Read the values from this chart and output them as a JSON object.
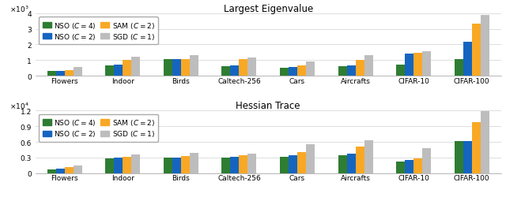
{
  "categories": [
    "Flowers",
    "Indoor",
    "Birds",
    "Caltech-256",
    "Cars",
    "Aircrafts",
    "CIFAR-10",
    "CIFAR-100"
  ],
  "eigenvalue": {
    "NSO_C4": [
      300,
      650,
      1050,
      600,
      500,
      600,
      700,
      1050
    ],
    "NSO_C2": [
      300,
      700,
      1050,
      650,
      550,
      650,
      1400,
      2150
    ],
    "SAM_C2": [
      350,
      1000,
      1050,
      1050,
      650,
      1000,
      1450,
      3350
    ],
    "SGD_C1": [
      550,
      1200,
      1300,
      1150,
      900,
      1300,
      1550,
      3900
    ]
  },
  "hessian": {
    "NSO_C4": [
      700,
      2900,
      2950,
      3000,
      3200,
      3400,
      2200,
      6100
    ],
    "NSO_C2": [
      900,
      3050,
      3050,
      3150,
      3400,
      3700,
      2600,
      6200
    ],
    "SAM_C2": [
      1200,
      3200,
      3350,
      3450,
      4000,
      5100,
      2900,
      9800
    ],
    "SGD_C1": [
      1500,
      3550,
      3850,
      3700,
      5600,
      6300,
      4800,
      11900
    ]
  },
  "colors": {
    "NSO_C4": "#2e7d32",
    "NSO_C2": "#1565c0",
    "SAM_C2": "#f9a825",
    "SGD_C1": "#bdbdbd"
  },
  "legend_labels": {
    "NSO_C4": "NSO ($C = 4$)",
    "NSO_C2": "NSO ($C = 2$)",
    "SAM_C2": "SAM ($C = 2$)",
    "SGD_C1": "SGD ($C = 1$)"
  },
  "title_eigen": "Largest Eigenvalue",
  "title_hessian": "Hessian Trace",
  "ylim_eigen": [
    0,
    4000
  ],
  "ylim_hessian": [
    0,
    12000
  ],
  "yticks_eigen": [
    0,
    1000,
    2000,
    3000,
    4000
  ],
  "ytick_labels_eigen": [
    "0",
    "1",
    "2",
    "3",
    "4"
  ],
  "exp_label_eigen": "$\\times 10^3$",
  "yticks_hessian": [
    0,
    3000,
    6000,
    9000,
    12000
  ],
  "ytick_labels_hessian": [
    "0",
    "0.3",
    "0.6",
    "0.9",
    "1.2"
  ],
  "exp_label_hessian": "$\\times 10^4$",
  "bar_width": 0.15
}
